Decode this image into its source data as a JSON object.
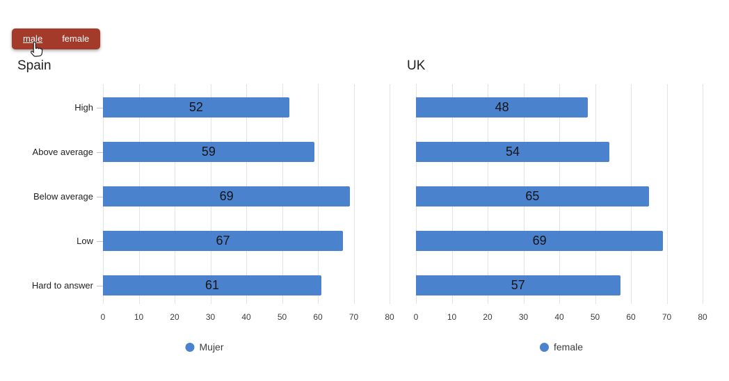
{
  "toggle": {
    "male_label": "male",
    "female_label": "female",
    "active_item": "male",
    "background_color": "#A43A2A",
    "text_color": "#FFFFFF"
  },
  "icons": {
    "cursor": "hand-pointer-icon",
    "legend_marker": "circle"
  },
  "chart_data": [
    {
      "type": "bar",
      "orientation": "horizontal",
      "title": "Spain",
      "categories": [
        "High",
        "Above average",
        "Below average",
        "Low",
        "Hard to answer"
      ],
      "series": [
        {
          "name": "Mujer",
          "values": [
            52,
            59,
            69,
            67,
            61
          ]
        }
      ],
      "xlim": [
        0,
        80
      ],
      "xticks": [
        0,
        10,
        20,
        30,
        40,
        50,
        60,
        70,
        80
      ],
      "grid": true,
      "show_category_labels": true,
      "value_labels": true,
      "legend": {
        "position": "bottom",
        "label": "Mujer"
      },
      "bar_color": "#4A82CD"
    },
    {
      "type": "bar",
      "orientation": "horizontal",
      "title": "UK",
      "categories": [
        "High",
        "Above average",
        "Below average",
        "Low",
        "Hard to answer"
      ],
      "series": [
        {
          "name": "female",
          "values": [
            48,
            54,
            65,
            69,
            57
          ]
        }
      ],
      "xlim": [
        0,
        80
      ],
      "xticks": [
        0,
        10,
        20,
        30,
        40,
        50,
        60,
        70,
        80
      ],
      "grid": true,
      "show_category_labels": false,
      "value_labels": true,
      "legend": {
        "position": "bottom",
        "label": "female"
      },
      "bar_color": "#4A82CD"
    }
  ]
}
